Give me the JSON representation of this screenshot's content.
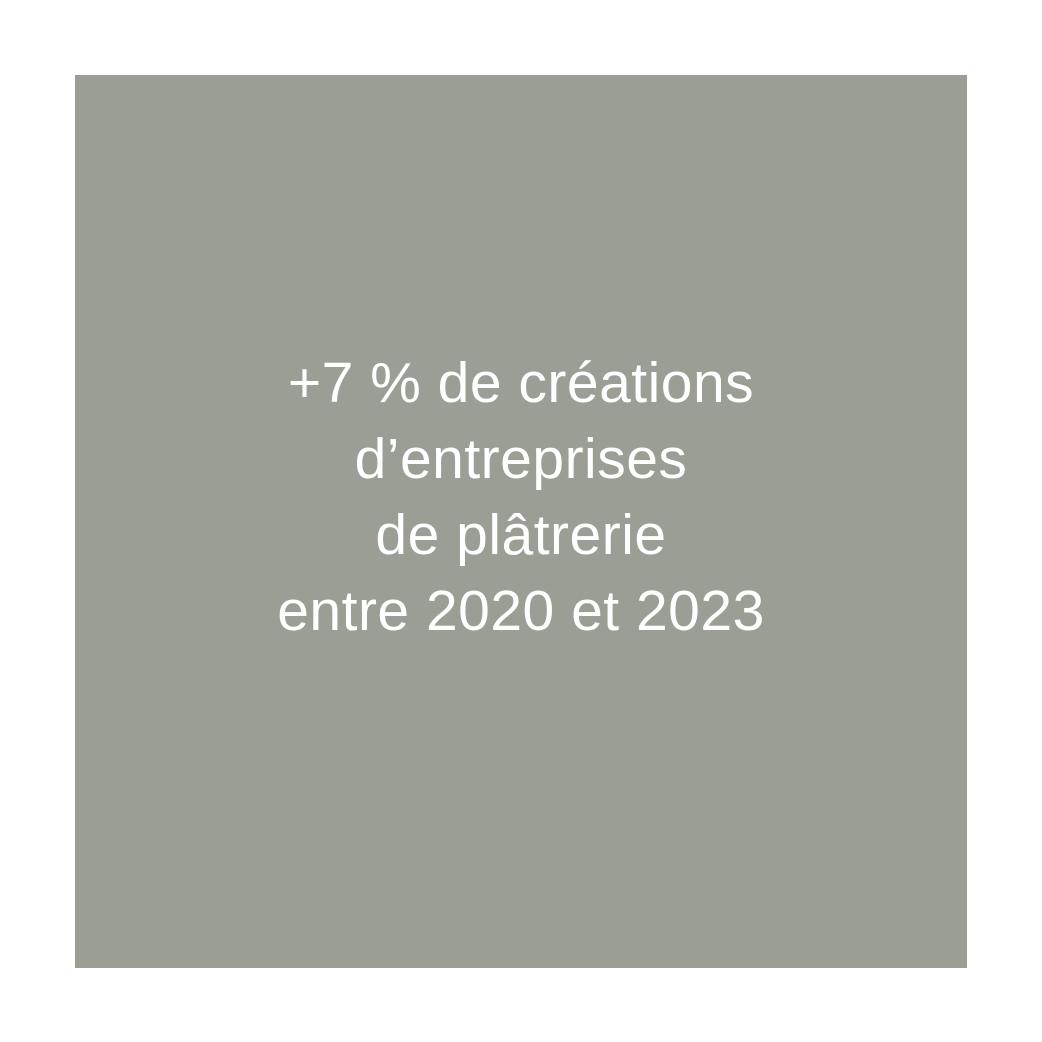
{
  "card": {
    "background_color": "#9B9E95",
    "text_color": "#ffffff",
    "lines": [
      "+7 % de créations",
      "d’entreprises",
      "de plâtrerie",
      "entre 2020 et 2023"
    ]
  }
}
